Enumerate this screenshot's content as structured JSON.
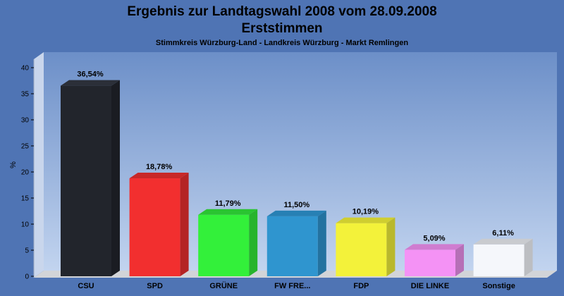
{
  "chart_data": {
    "type": "bar",
    "title": "Ergebnis zur Landtagswahl 2008 vom 28.09.2008",
    "title2": "Erststimmen",
    "subtitle": "Stimmkreis Würzburg-Land - Landkreis Würzburg - Markt Remlingen",
    "ylabel": "%",
    "xlabel": "",
    "ylim": [
      0,
      40
    ],
    "yticks": [
      "0",
      "5",
      "10",
      "15",
      "20",
      "25",
      "30",
      "35",
      "40"
    ],
    "grid": false,
    "legend": "none",
    "categories": [
      "CSU",
      "SPD",
      "GRÜNE",
      "FW FRE...",
      "FDP",
      "DIE LINKE",
      "Sonstige"
    ],
    "values": [
      36.54,
      18.78,
      11.79,
      11.5,
      10.19,
      5.09,
      6.11
    ],
    "value_labels": [
      "36,54%",
      "18,78%",
      "11,79%",
      "11,50%",
      "10,19%",
      "5,09%",
      "6,11%"
    ],
    "colors": [
      "#22252c",
      "#f22f2f",
      "#33f03a",
      "#2f95cf",
      "#f3f23a",
      "#f492f5",
      "#f5f7fb"
    ],
    "side_colors": [
      "#1a1c22",
      "#b42424",
      "#27b42c",
      "#2372a0",
      "#b9b82c",
      "#b66fb7",
      "#bcbec2"
    ],
    "top_colors": [
      "#2b2f38",
      "#c82828",
      "#2ac431",
      "#2780b4",
      "#cfce30",
      "#cf7cd0",
      "#c9cbcf"
    ]
  }
}
